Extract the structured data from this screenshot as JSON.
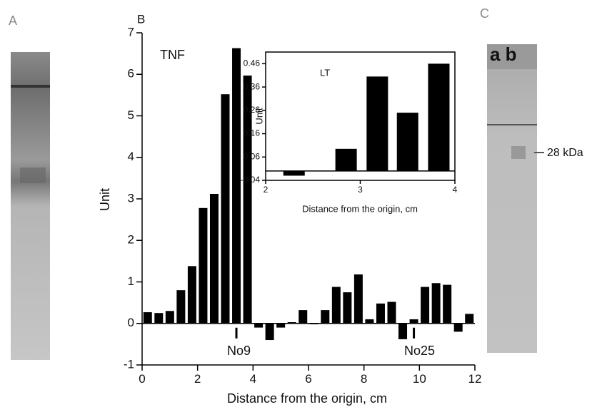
{
  "panel_labels": [
    "A",
    "B",
    "C"
  ],
  "gel_lane_labels": "a b",
  "marker_label": "28 kDa",
  "chart_data": [
    {
      "type": "bar",
      "xlabel": "Distance from the origin, cm",
      "ylabel": "Unit",
      "annotations": [
        "TNF",
        "No9",
        "No25"
      ],
      "x": [
        0.2,
        0.6,
        1.0,
        1.4,
        1.8,
        2.2,
        2.6,
        3.0,
        3.4,
        3.8,
        4.2,
        4.6,
        5.0,
        5.4,
        5.8,
        6.2,
        6.6,
        7.0,
        7.4,
        7.8,
        8.2,
        8.6,
        9.0,
        9.4,
        9.8,
        10.2,
        10.6,
        11.0,
        11.4,
        11.8
      ],
      "values": [
        0.27,
        0.25,
        0.3,
        0.8,
        1.38,
        2.78,
        3.12,
        5.52,
        6.63,
        5.97,
        -0.1,
        -0.4,
        -0.1,
        0.03,
        0.32,
        -0.02,
        0.32,
        0.88,
        0.75,
        1.18,
        0.1,
        0.48,
        0.52,
        -0.38,
        0.1,
        0.88,
        0.97,
        0.93,
        -0.2,
        0.23
      ],
      "color": "#000000",
      "xlim": [
        0,
        12
      ],
      "xticks": [
        0,
        2,
        4,
        6,
        8,
        10,
        12
      ],
      "ylim": [
        -1,
        7
      ],
      "yticks": [
        -1,
        0,
        1,
        2,
        3,
        4,
        5,
        6,
        7
      ]
    },
    {
      "type": "bar",
      "xlabel": "Distance from the origin, cm",
      "ylabel": "Unit",
      "annotations": [
        "LT"
      ],
      "x": [
        2.3,
        2.85,
        3.18,
        3.5,
        3.83
      ],
      "values": [
        -0.02,
        0.095,
        0.405,
        0.25,
        0.46
      ],
      "color": "#000000",
      "xlim": [
        2,
        4
      ],
      "xticks": [
        2,
        3,
        4
      ],
      "ylim": [
        -0.04,
        0.51
      ],
      "yticks": [
        -0.04,
        0.06,
        0.16,
        0.26,
        0.36,
        0.46
      ]
    }
  ]
}
